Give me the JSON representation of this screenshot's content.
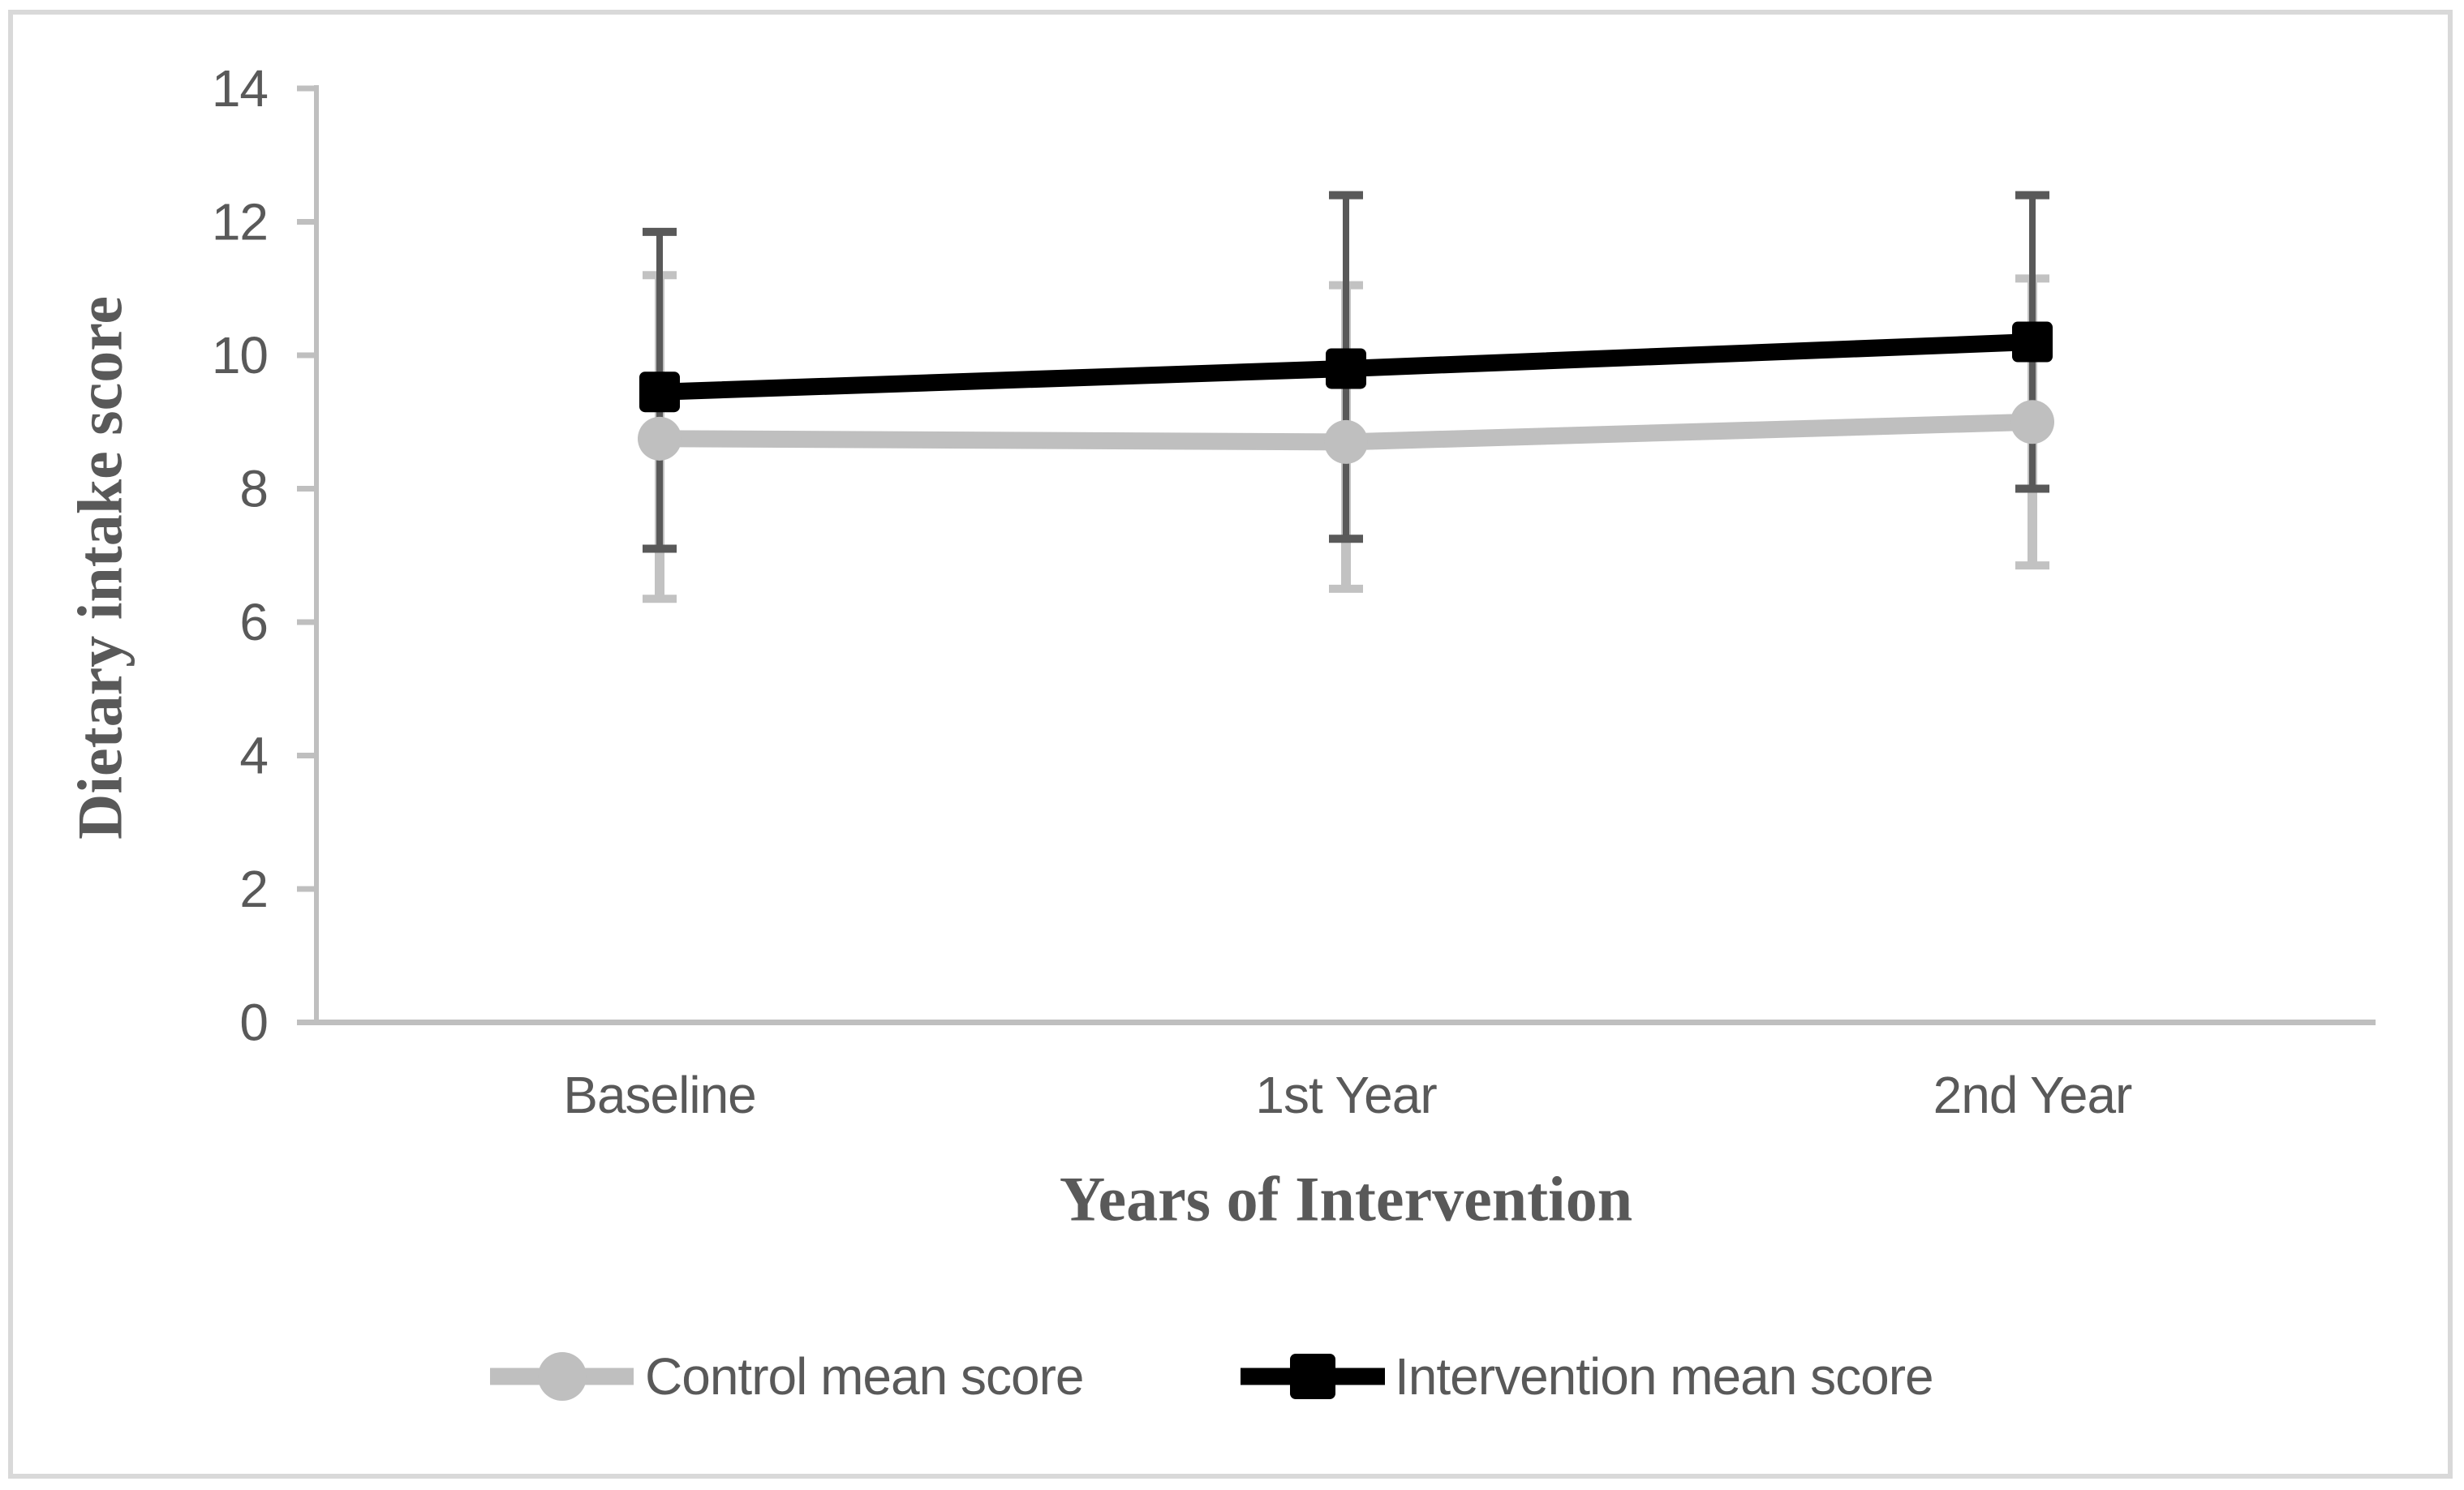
{
  "figure": {
    "background": "#FFFFFF",
    "border_color": "#D9D9D9"
  },
  "colors": {
    "text": "#595959",
    "axis_line": "#BFBFBF",
    "control_series": "#BFBFBF",
    "intervention_series": "#000000",
    "control_error_bar": "#C2C2C2",
    "intervention_error_bar": "#595959"
  },
  "chart_data": {
    "type": "line",
    "title": "",
    "xlabel": "Years of Intervention",
    "ylabel": "Dietary intake score",
    "categories": [
      "Baseline",
      "1st Year",
      "2nd Year"
    ],
    "ylim": [
      0,
      14
    ],
    "ytick_step": 2,
    "ytick_labels": [
      "0",
      "2",
      "4",
      "6",
      "8",
      "10",
      "12",
      "14"
    ],
    "grid": false,
    "legend_position": "bottom",
    "error_bars": true,
    "series": [
      {
        "name": "Control mean score",
        "marker": "circle",
        "color": "#BFBFBF",
        "error_color": "#C2C2C2",
        "values": [
          8.75,
          8.7,
          9.0
        ],
        "error_upper": [
          11.2,
          11.05,
          11.15
        ],
        "error_lower": [
          6.35,
          6.5,
          6.85
        ]
      },
      {
        "name": "Intervention mean score",
        "marker": "square",
        "color": "#000000",
        "error_color": "#595959",
        "values": [
          9.45,
          9.8,
          10.2
        ],
        "error_upper": [
          11.85,
          12.4,
          12.4
        ],
        "error_lower": [
          7.1,
          7.25,
          8.0
        ]
      }
    ]
  }
}
